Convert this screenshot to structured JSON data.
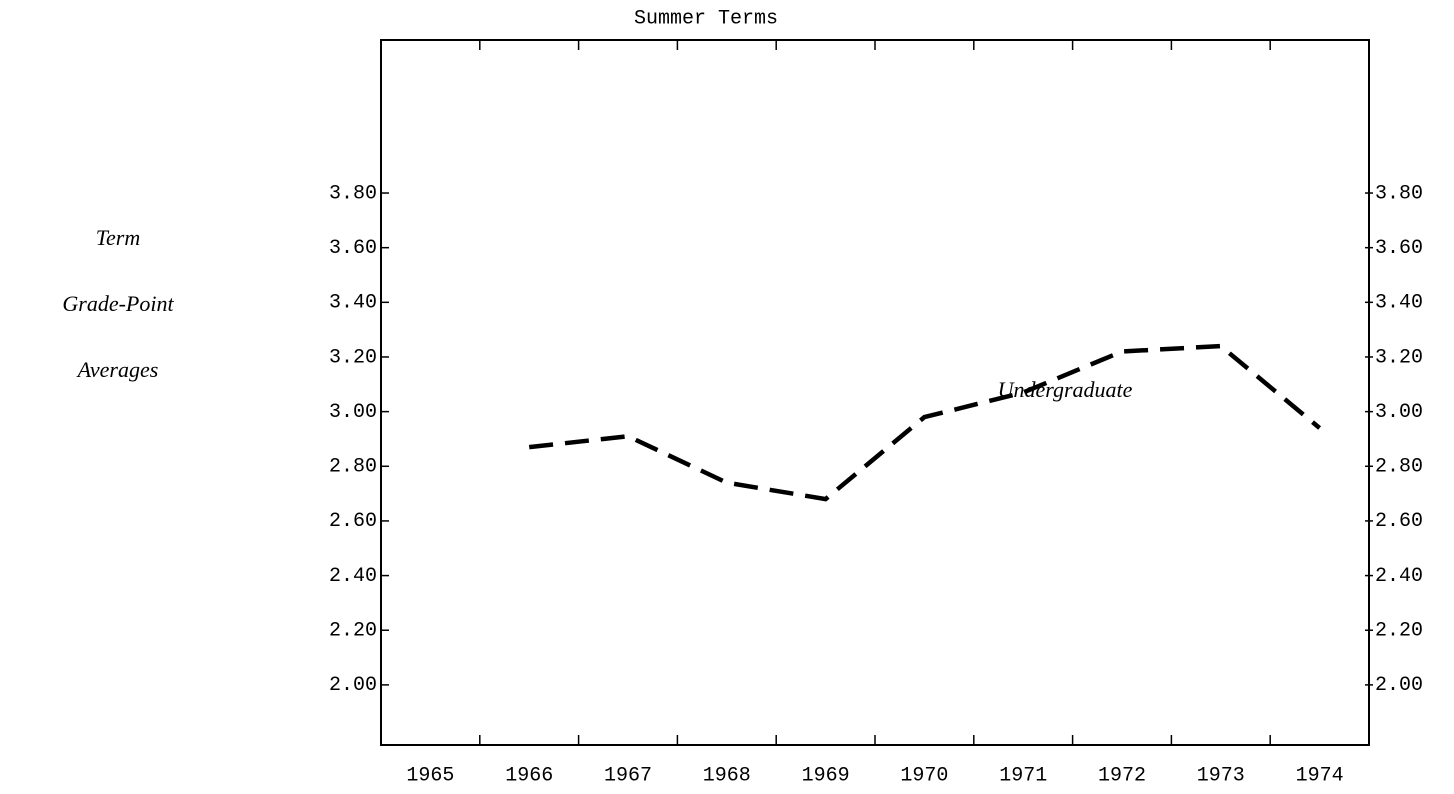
{
  "chart_data": {
    "type": "line",
    "title": "Summer Terms",
    "y_label": [
      "Term",
      "Grade-Point",
      "Averages"
    ],
    "categories": [
      "1965",
      "1966",
      "1967",
      "1968",
      "1969",
      "1970",
      "1971",
      "1972",
      "1973",
      "1974"
    ],
    "series": [
      {
        "name": "Undergraduate",
        "color": "#000000",
        "dashed": true,
        "values": [
          null,
          2.87,
          2.91,
          2.74,
          2.68,
          2.98,
          3.07,
          3.22,
          3.24,
          2.94
        ]
      }
    ],
    "ylim": [
      1.78,
      4.36
    ],
    "yticks": [
      {
        "value": 2.0,
        "label": "2.00"
      },
      {
        "value": 2.2,
        "label": "2.20"
      },
      {
        "value": 2.4,
        "label": "2.40"
      },
      {
        "value": 2.6,
        "label": "2.60"
      },
      {
        "value": 2.8,
        "label": "2.80"
      },
      {
        "value": 3.0,
        "label": "3.00"
      },
      {
        "value": 3.2,
        "label": "3.20"
      },
      {
        "value": 3.4,
        "label": "3.40"
      },
      {
        "value": 3.6,
        "label": "3.60"
      },
      {
        "value": 3.8,
        "label": "3.80"
      }
    ],
    "right_axis_mirror": true,
    "grid": false
  }
}
